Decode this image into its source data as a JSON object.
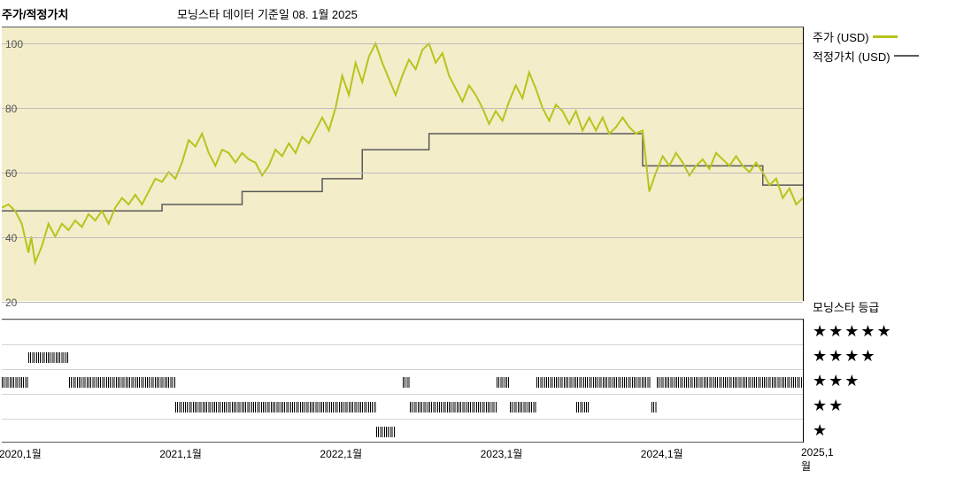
{
  "title": "주가/적정가치",
  "subtitle": "모닝스타 데이터 기준일 08. 1월 2025",
  "legend": {
    "price": "주가 (USD)",
    "fair": "적정가치 (USD)"
  },
  "rating_title": "모닝스타 등급",
  "colors": {
    "price_line": "#b6c41c",
    "fair_line": "#5a5a5a",
    "plot_bg": "#f3edc9",
    "grid": "#bcbcbc",
    "rating_bar": "#000000"
  },
  "chart": {
    "type": "line",
    "x_range": [
      0,
      60
    ],
    "y_range": [
      20,
      105
    ],
    "y_ticks": [
      20,
      40,
      60,
      80,
      100
    ],
    "x_ticks": [
      {
        "x": 0,
        "label": "2020,1월"
      },
      {
        "x": 12,
        "label": "2021,1월"
      },
      {
        "x": 24,
        "label": "2022,1월"
      },
      {
        "x": 36,
        "label": "2023,1월"
      },
      {
        "x": 48,
        "label": "2024,1월"
      },
      {
        "x": 60,
        "label": "2025,1월"
      }
    ],
    "price_line_width": 2,
    "fair_line_width": 1.5,
    "price": [
      [
        0,
        49
      ],
      [
        0.5,
        50
      ],
      [
        1,
        48
      ],
      [
        1.5,
        44
      ],
      [
        2,
        35
      ],
      [
        2.2,
        40
      ],
      [
        2.5,
        32
      ],
      [
        3,
        37
      ],
      [
        3.5,
        44
      ],
      [
        4,
        40
      ],
      [
        4.5,
        44
      ],
      [
        5,
        42
      ],
      [
        5.5,
        45
      ],
      [
        6,
        43
      ],
      [
        6.5,
        47
      ],
      [
        7,
        45
      ],
      [
        7.5,
        48
      ],
      [
        8,
        44
      ],
      [
        8.5,
        49
      ],
      [
        9,
        52
      ],
      [
        9.5,
        50
      ],
      [
        10,
        53
      ],
      [
        10.5,
        50
      ],
      [
        11,
        54
      ],
      [
        11.5,
        58
      ],
      [
        12,
        57
      ],
      [
        12.5,
        60
      ],
      [
        13,
        58
      ],
      [
        13.5,
        63
      ],
      [
        14,
        70
      ],
      [
        14.5,
        68
      ],
      [
        15,
        72
      ],
      [
        15.5,
        66
      ],
      [
        16,
        62
      ],
      [
        16.5,
        67
      ],
      [
        17,
        66
      ],
      [
        17.5,
        63
      ],
      [
        18,
        66
      ],
      [
        18.5,
        64
      ],
      [
        19,
        63
      ],
      [
        19.5,
        59
      ],
      [
        20,
        62
      ],
      [
        20.5,
        67
      ],
      [
        21,
        65
      ],
      [
        21.5,
        69
      ],
      [
        22,
        66
      ],
      [
        22.5,
        71
      ],
      [
        23,
        69
      ],
      [
        23.5,
        73
      ],
      [
        24,
        77
      ],
      [
        24.5,
        73
      ],
      [
        25,
        80
      ],
      [
        25.5,
        90
      ],
      [
        26,
        84
      ],
      [
        26.5,
        94
      ],
      [
        27,
        88
      ],
      [
        27.5,
        96
      ],
      [
        28,
        100
      ],
      [
        28.5,
        94
      ],
      [
        29,
        89
      ],
      [
        29.5,
        84
      ],
      [
        30,
        90
      ],
      [
        30.5,
        95
      ],
      [
        31,
        92
      ],
      [
        31.5,
        98
      ],
      [
        32,
        100
      ],
      [
        32.5,
        94
      ],
      [
        33,
        97
      ],
      [
        33.5,
        90
      ],
      [
        34,
        86
      ],
      [
        34.5,
        82
      ],
      [
        35,
        87
      ],
      [
        35.5,
        84
      ],
      [
        36,
        80
      ],
      [
        36.5,
        75
      ],
      [
        37,
        79
      ],
      [
        37.5,
        76
      ],
      [
        38,
        82
      ],
      [
        38.5,
        87
      ],
      [
        39,
        83
      ],
      [
        39.5,
        91
      ],
      [
        40,
        86
      ],
      [
        40.5,
        80
      ],
      [
        41,
        76
      ],
      [
        41.5,
        81
      ],
      [
        42,
        79
      ],
      [
        42.5,
        75
      ],
      [
        43,
        79
      ],
      [
        43.5,
        73
      ],
      [
        44,
        77
      ],
      [
        44.5,
        73
      ],
      [
        45,
        77
      ],
      [
        45.5,
        72
      ],
      [
        46,
        74
      ],
      [
        46.5,
        77
      ],
      [
        47,
        74
      ],
      [
        47.5,
        72
      ],
      [
        48,
        73
      ],
      [
        48.5,
        54
      ],
      [
        49,
        60
      ],
      [
        49.5,
        65
      ],
      [
        50,
        62
      ],
      [
        50.5,
        66
      ],
      [
        51,
        63
      ],
      [
        51.5,
        59
      ],
      [
        52,
        62
      ],
      [
        52.5,
        64
      ],
      [
        53,
        61
      ],
      [
        53.5,
        66
      ],
      [
        54,
        64
      ],
      [
        54.5,
        62
      ],
      [
        55,
        65
      ],
      [
        55.5,
        62
      ],
      [
        56,
        60
      ],
      [
        56.5,
        63
      ],
      [
        57,
        60
      ],
      [
        57.5,
        56
      ],
      [
        58,
        58
      ],
      [
        58.5,
        52
      ],
      [
        59,
        55
      ],
      [
        59.5,
        50
      ],
      [
        60,
        52
      ]
    ],
    "fair": [
      [
        0,
        48
      ],
      [
        12,
        48
      ],
      [
        12,
        50
      ],
      [
        18,
        50
      ],
      [
        18,
        54
      ],
      [
        24,
        54
      ],
      [
        24,
        58
      ],
      [
        27,
        58
      ],
      [
        27,
        67
      ],
      [
        32,
        67
      ],
      [
        32,
        72
      ],
      [
        48,
        72
      ],
      [
        48,
        62
      ],
      [
        57,
        62
      ],
      [
        57,
        56
      ],
      [
        60,
        56
      ]
    ]
  },
  "rating": {
    "rows": 5,
    "segments": {
      "5": [],
      "4": [
        [
          2,
          5
        ]
      ],
      "3": [
        [
          0,
          2
        ],
        [
          5,
          13
        ],
        [
          30,
          30.5
        ],
        [
          37,
          38
        ],
        [
          40,
          48.6
        ],
        [
          49,
          60
        ]
      ],
      "2": [
        [
          13,
          28
        ],
        [
          30.5,
          37
        ],
        [
          38,
          40
        ],
        [
          43,
          44
        ],
        [
          48.6,
          49
        ]
      ],
      "1": [
        [
          28,
          29.5
        ]
      ]
    }
  }
}
